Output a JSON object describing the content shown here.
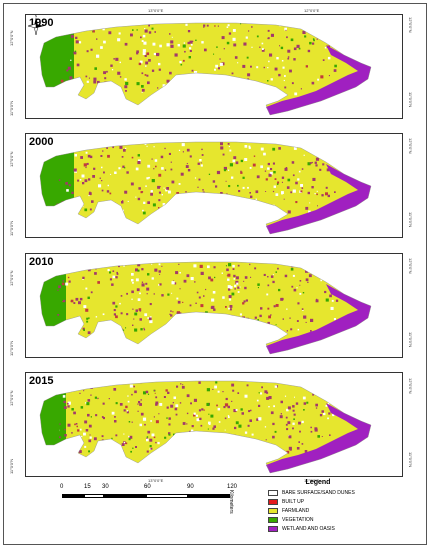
{
  "panels": [
    {
      "year": "1990",
      "top": "14°N",
      "coords": [
        "12°0'0\"N",
        "13°0'0\"E",
        "12°0'0\"E",
        "12°0'0\"N",
        "11°0'0\"N",
        "11°0'0\"N"
      ]
    },
    {
      "year": "2000",
      "coords": [
        "12°0'0\"N",
        "13°0'0\"E",
        "12°0'0\"E",
        "12°0'0\"N",
        "11°0'0\"N",
        "11°0'0\"N"
      ]
    },
    {
      "year": "2010",
      "coords": [
        "12°0'0\"N",
        "13°0'0\"E",
        "12°0'0\"E",
        "12°0'0\"N",
        "11°0'0\"N",
        "11°0'0\"N"
      ]
    },
    {
      "year": "2015",
      "coords": [
        "12°0'0\"N",
        "13°0'0\"E",
        "12°0'0\"E",
        "12°0'0\"N",
        "11°0'0\"N",
        "11°0'0\"N"
      ]
    }
  ],
  "north": {
    "label": "N",
    "icon": "north-arrow-icon"
  },
  "scale": {
    "ticks": [
      "0",
      "15",
      "30",
      "60",
      "90",
      "120"
    ],
    "unit": "Kilometers"
  },
  "legend": {
    "title": "Legend",
    "items": [
      {
        "label": "BARE SURFACE/SAND DUNES",
        "color": "#ffffff"
      },
      {
        "label": "BUILT UP",
        "color": "#e31a1c"
      },
      {
        "label": "FARMLAND",
        "color": "#e6e62e"
      },
      {
        "label": "VEGETATION",
        "color": "#38a800"
      },
      {
        "label": "WETLAND AND OASIS",
        "color": "#a020c0"
      }
    ]
  }
}
